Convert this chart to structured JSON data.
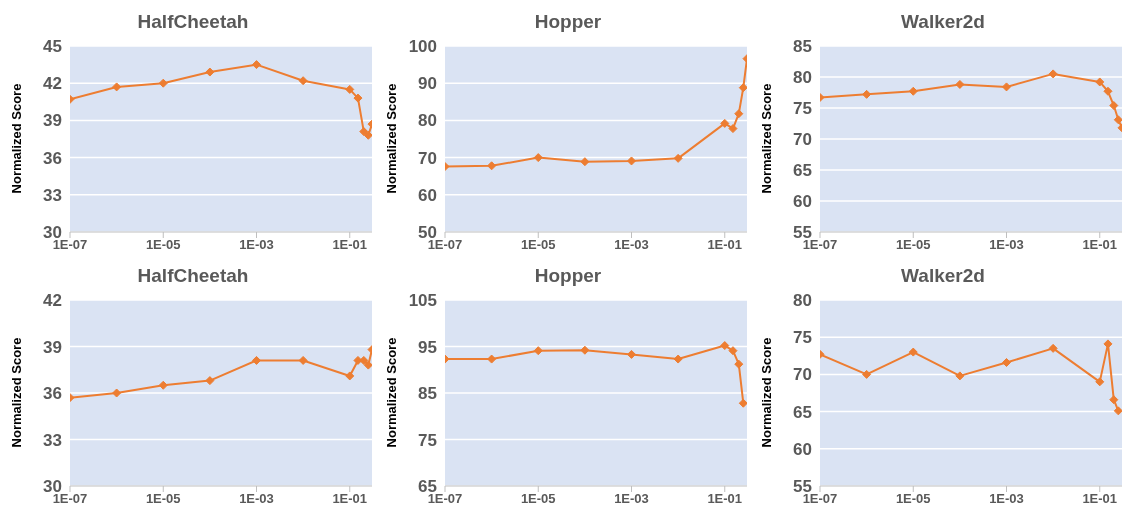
{
  "chart_data": [
    {
      "type": "line",
      "title": "HalfCheetah",
      "ylabel": "Normalized Score",
      "log": "x",
      "grid": "y",
      "marker": "diamond",
      "line_style": "solid",
      "x": [
        1e-07,
        1e-06,
        1e-05,
        0.0001,
        0.001,
        0.01,
        0.1,
        0.15,
        0.2,
        0.25,
        0.3
      ],
      "series": [
        {
          "color": "#ed7d31",
          "values": [
            40.7,
            41.7,
            42.0,
            42.9,
            43.5,
            42.2,
            41.5,
            40.8,
            38.1,
            37.8,
            38.7
          ]
        }
      ],
      "xlim": [
        1e-07,
        0.3
      ],
      "xticks": [
        {
          "value": 1e-07,
          "label": "1E-07"
        },
        {
          "value": 1e-05,
          "label": "1E-05"
        },
        {
          "value": 0.001,
          "label": "1E-03"
        },
        {
          "value": 0.1,
          "label": "1E-01"
        }
      ],
      "ylim": [
        30,
        45
      ],
      "yticks": [
        30,
        33,
        36,
        39,
        42,
        45
      ]
    },
    {
      "type": "line",
      "title": "Hopper",
      "ylabel": "Normalized Score",
      "log": "x",
      "grid": "y",
      "marker": "diamond",
      "line_style": "solid",
      "x": [
        1e-07,
        1e-06,
        1e-05,
        0.0001,
        0.001,
        0.01,
        0.1,
        0.15,
        0.2,
        0.25,
        0.3
      ],
      "series": [
        {
          "color": "#ed7d31",
          "values": [
            67.6,
            67.8,
            70.0,
            68.9,
            69.1,
            69.8,
            79.2,
            77.8,
            81.8,
            88.8,
            96.6
          ]
        }
      ],
      "xlim": [
        1e-07,
        0.3
      ],
      "xticks": [
        {
          "value": 1e-07,
          "label": "1E-07"
        },
        {
          "value": 1e-05,
          "label": "1E-05"
        },
        {
          "value": 0.001,
          "label": "1E-03"
        },
        {
          "value": 0.1,
          "label": "1E-01"
        }
      ],
      "ylim": [
        50,
        100
      ],
      "yticks": [
        50,
        60,
        70,
        80,
        90,
        100
      ]
    },
    {
      "type": "line",
      "title": "Walker2d",
      "ylabel": "Normalized Score",
      "log": "x",
      "grid": "y",
      "marker": "diamond",
      "line_style": "solid",
      "x": [
        1e-07,
        1e-06,
        1e-05,
        0.0001,
        0.001,
        0.01,
        0.1,
        0.15,
        0.2,
        0.25,
        0.3
      ],
      "series": [
        {
          "color": "#ed7d31",
          "values": [
            76.7,
            77.2,
            77.7,
            78.8,
            78.4,
            80.5,
            79.2,
            77.7,
            75.4,
            73.1,
            71.8
          ]
        }
      ],
      "xlim": [
        1e-07,
        0.3
      ],
      "xticks": [
        {
          "value": 1e-07,
          "label": "1E-07"
        },
        {
          "value": 1e-05,
          "label": "1E-05"
        },
        {
          "value": 0.001,
          "label": "1E-03"
        },
        {
          "value": 0.1,
          "label": "1E-01"
        }
      ],
      "ylim": [
        55,
        85
      ],
      "yticks": [
        55,
        60,
        65,
        70,
        75,
        80,
        85
      ]
    },
    {
      "type": "line",
      "title": "HalfCheetah",
      "ylabel": "Normalized Score",
      "log": "x",
      "grid": "y",
      "marker": "diamond",
      "line_style": "solid",
      "x": [
        1e-07,
        1e-06,
        1e-05,
        0.0001,
        0.001,
        0.01,
        0.1,
        0.15,
        0.2,
        0.25,
        0.3
      ],
      "series": [
        {
          "color": "#ed7d31",
          "values": [
            35.7,
            36.0,
            36.5,
            36.8,
            38.1,
            38.1,
            37.1,
            38.1,
            38.1,
            37.8,
            38.8
          ]
        }
      ],
      "xlim": [
        1e-07,
        0.3
      ],
      "xticks": [
        {
          "value": 1e-07,
          "label": "1E-07"
        },
        {
          "value": 1e-05,
          "label": "1E-05"
        },
        {
          "value": 0.001,
          "label": "1E-03"
        },
        {
          "value": 0.1,
          "label": "1E-01"
        }
      ],
      "ylim": [
        30,
        42
      ],
      "yticks": [
        30,
        33,
        36,
        39,
        42
      ]
    },
    {
      "type": "line",
      "title": "Hopper",
      "ylabel": "Normalized Score",
      "log": "x",
      "grid": "y",
      "marker": "diamond",
      "line_style": "solid",
      "x": [
        1e-07,
        1e-06,
        1e-05,
        0.0001,
        0.001,
        0.01,
        0.1,
        0.15,
        0.2,
        0.25
      ],
      "series": [
        {
          "color": "#ed7d31",
          "values": [
            92.3,
            92.3,
            94.1,
            94.2,
            93.3,
            92.3,
            95.2,
            94.1,
            91.2,
            82.8
          ]
        }
      ],
      "xlim": [
        1e-07,
        0.3
      ],
      "xticks": [
        {
          "value": 1e-07,
          "label": "1E-07"
        },
        {
          "value": 1e-05,
          "label": "1E-05"
        },
        {
          "value": 0.001,
          "label": "1E-03"
        },
        {
          "value": 0.1,
          "label": "1E-01"
        }
      ],
      "ylim": [
        65,
        105
      ],
      "yticks": [
        65,
        75,
        85,
        95,
        105
      ]
    },
    {
      "type": "line",
      "title": "Walker2d",
      "ylabel": "Normalized Score",
      "log": "x",
      "grid": "y",
      "marker": "diamond",
      "line_style": "solid",
      "x": [
        1e-07,
        1e-06,
        1e-05,
        0.0001,
        0.001,
        0.01,
        0.1,
        0.15,
        0.2,
        0.25
      ],
      "series": [
        {
          "color": "#ed7d31",
          "values": [
            72.7,
            70.0,
            73.0,
            69.8,
            71.6,
            73.5,
            69.0,
            74.1,
            66.6,
            65.1
          ]
        }
      ],
      "xlim": [
        1e-07,
        0.3
      ],
      "xticks": [
        {
          "value": 1e-07,
          "label": "1E-07"
        },
        {
          "value": 1e-05,
          "label": "1E-05"
        },
        {
          "value": 0.001,
          "label": "1E-03"
        },
        {
          "value": 0.1,
          "label": "1E-01"
        }
      ],
      "ylim": [
        55,
        80
      ],
      "yticks": [
        55,
        60,
        65,
        70,
        75,
        80
      ]
    }
  ]
}
